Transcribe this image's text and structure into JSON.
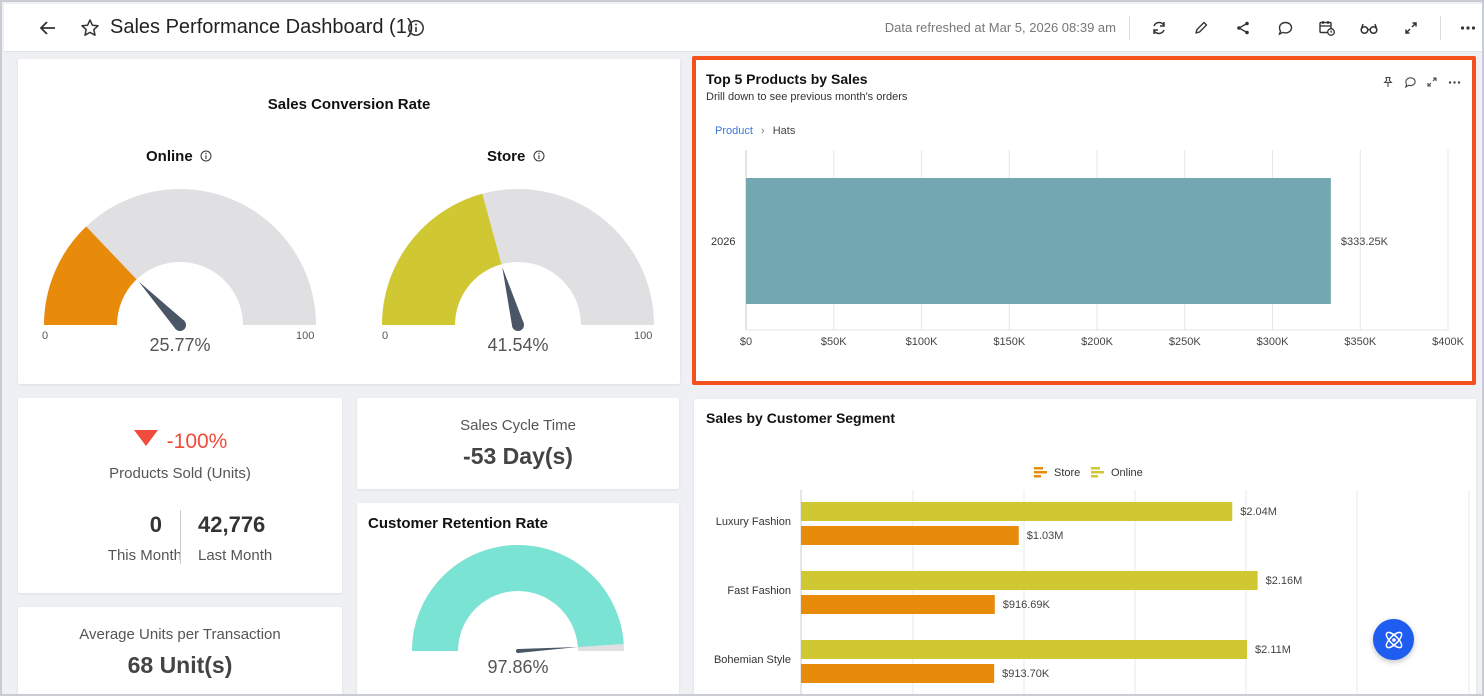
{
  "header": {
    "title": "Sales Performance Dashboard (1)",
    "refreshed": "Data refreshed at Mar 5, 2026 08:39 am",
    "icons": [
      "back-arrow-icon",
      "star-icon",
      "info-icon",
      "refresh-icon",
      "edit-icon",
      "share-icon",
      "comment-icon",
      "schedule-icon",
      "glasses-icon",
      "expand-icon",
      "more-icon"
    ]
  },
  "conversion": {
    "title": "Sales Conversion Rate",
    "online": {
      "label": "Online",
      "value": 25.77,
      "value_text": "25.77%",
      "min": "0",
      "max": "100",
      "color": "#e88a0a"
    },
    "store": {
      "label": "Store",
      "value": 41.54,
      "value_text": "41.54%",
      "min": "0",
      "max": "100",
      "color": "#d0c832"
    },
    "track_color": "#e0dfe2",
    "needle_color": "#4a5566"
  },
  "products_sold": {
    "change": "-100%",
    "label": "Products Sold (Units)",
    "this_month_value": "0",
    "this_month_label": "This Month",
    "last_month_value": "42,776",
    "last_month_label": "Last Month",
    "down_color": "#f04b3c"
  },
  "cycle_time": {
    "label": "Sales Cycle Time",
    "value": "-53 Day(s)"
  },
  "avg_units": {
    "label": "Average Units per Transaction",
    "value": "68 Unit(s)"
  },
  "retention": {
    "title": "Customer Retention Rate",
    "value": 97.86,
    "value_text": "97.86%",
    "color": "#7ae3d4"
  },
  "top5": {
    "title": "Top 5 Products by Sales",
    "subtitle": "Drill down to see previous month's orders",
    "breadcrumb_root": "Product",
    "breadcrumb_current": "Hats",
    "highlight_color": "#f4511e"
  },
  "segment": {
    "title": "Sales by Customer Segment"
  },
  "chart_data": [
    {
      "type": "bar",
      "orientation": "horizontal",
      "title": "Top 5 Products by Sales",
      "categories": [
        "2026"
      ],
      "values": [
        333.25
      ],
      "value_labels": [
        "$333.25K"
      ],
      "x_ticks": [
        "$0",
        "$50K",
        "$100K",
        "$150K",
        "$200K",
        "$250K",
        "$300K",
        "$350K",
        "$400K"
      ],
      "xlim": [
        0,
        400
      ],
      "unit": "$K",
      "bar_color": "#73a8b0",
      "grid": true
    },
    {
      "type": "bar",
      "orientation": "horizontal",
      "title": "Sales by Customer Segment",
      "categories": [
        "Luxury Fashion",
        "Fast Fashion",
        "Bohemian Style"
      ],
      "series": [
        {
          "name": "Online",
          "values": [
            2040,
            2160,
            2110
          ],
          "value_labels": [
            "$2.04M",
            "$2.16M",
            "$2.11M"
          ],
          "color": "#d0c832"
        },
        {
          "name": "Store",
          "values": [
            1030,
            916.69,
            913.7
          ],
          "value_labels": [
            "$1.03M",
            "$916.69K",
            "$913.70K"
          ],
          "color": "#e88a0a"
        }
      ],
      "legend": [
        "Store",
        "Online"
      ],
      "legend_position": "top",
      "unit": "$K",
      "grid": true
    }
  ]
}
